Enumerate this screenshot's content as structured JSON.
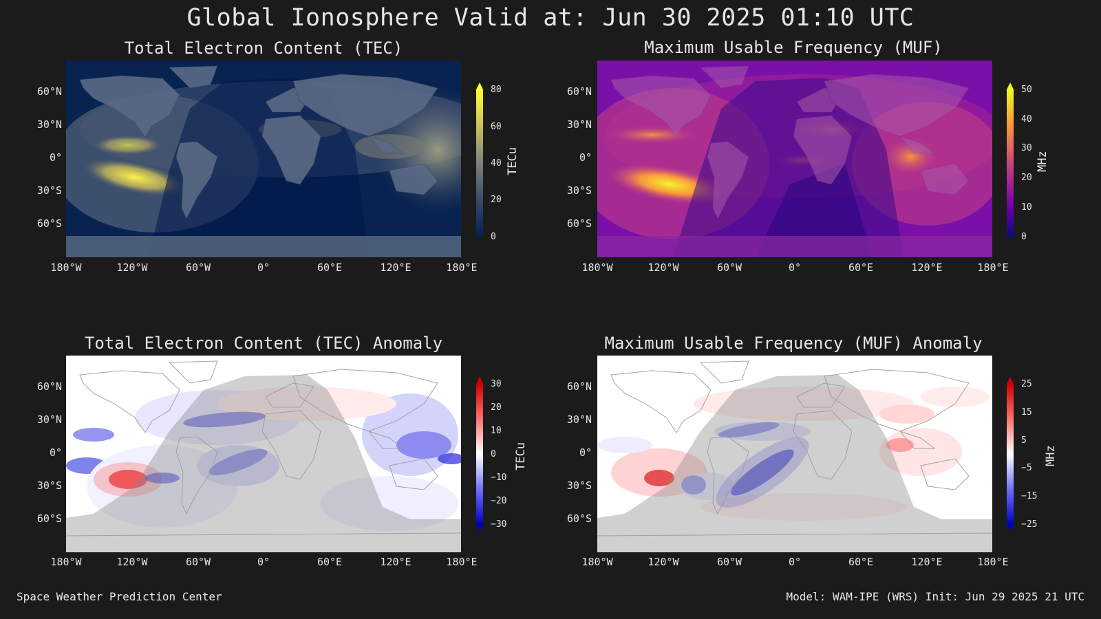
{
  "title": "Global Ionosphere Valid at: Jun 30 2025 01:10 UTC",
  "footer": {
    "left": "Space Weather Prediction Center",
    "right": "Model: WAM-IPE (WRS) Init: Jun 29 2025 21 UTC"
  },
  "lat_labels": [
    "60°N",
    "30°N",
    "0°",
    "30°S",
    "60°S"
  ],
  "lon_labels": [
    "180°W",
    "120°W",
    "60°W",
    "0°",
    "60°E",
    "120°E",
    "180°E"
  ],
  "panels": {
    "tec": {
      "title": "Total Electron Content (TEC)",
      "colorbar_label": "TECu",
      "ticks": [
        "80",
        "60",
        "40",
        "20",
        "0"
      ],
      "colors": [
        "#ffff30",
        "#c8c060",
        "#7f7f7f",
        "#3a4a6a",
        "#002050"
      ]
    },
    "muf": {
      "title": "Maximum Usable Frequency (MUF)",
      "colorbar_label": "MHz",
      "ticks": [
        "50",
        "40",
        "30",
        "20",
        "10",
        "0"
      ],
      "colors": [
        "#f0f921",
        "#fca636",
        "#e16462",
        "#b12a90",
        "#6a00a8",
        "#0d0887"
      ]
    },
    "tec_anom": {
      "title": "Total Electron Content (TEC) Anomaly",
      "colorbar_label": "TECu",
      "ticks": [
        "30",
        "20",
        "10",
        "0",
        "−10",
        "−20",
        "−30"
      ],
      "colors": [
        "#d00000",
        "#ff7070",
        "#ffffff",
        "#7070ff",
        "#0000c0"
      ]
    },
    "muf_anom": {
      "title": "Maximum Usable Frequency (MUF) Anomaly",
      "colorbar_label": "MHz",
      "ticks": [
        "25",
        "15",
        "5",
        "−5",
        "−15",
        "−25"
      ],
      "colors": [
        "#d00000",
        "#ff7070",
        "#ffffff",
        "#7070ff",
        "#0000c0"
      ]
    }
  }
}
